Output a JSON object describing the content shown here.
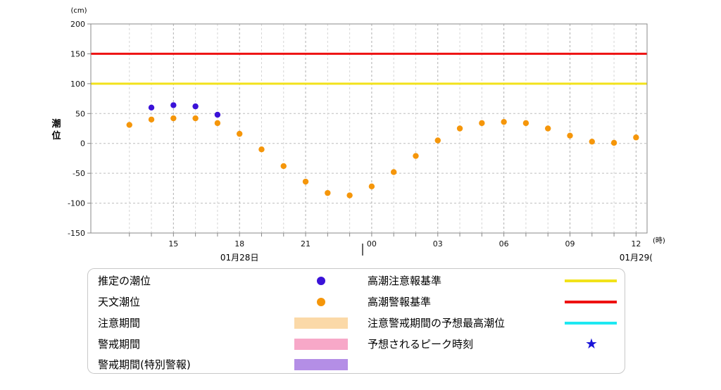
{
  "chart_data": {
    "type": "scatter",
    "ylabel": "潮位",
    "y_unit": "(cm)",
    "x_unit": "(時)",
    "ylim": [
      -150,
      200
    ],
    "yticks": [
      200,
      150,
      100,
      50,
      0,
      -50,
      -100,
      -150
    ],
    "x_range_hours": [
      11.25,
      36.5
    ],
    "xticks": [
      {
        "hour": 15,
        "label": "15"
      },
      {
        "hour": 18,
        "label": "18"
      },
      {
        "hour": 21,
        "label": "21"
      },
      {
        "hour": 24,
        "label": "00"
      },
      {
        "hour": 27,
        "label": "03"
      },
      {
        "hour": 30,
        "label": "06"
      },
      {
        "hour": 33,
        "label": "09"
      },
      {
        "hour": 36,
        "label": "12"
      }
    ],
    "date_labels": [
      {
        "hour": 18,
        "label": "01月28日"
      },
      {
        "hour": 36,
        "label": "01月29("
      }
    ],
    "reference_lines": [
      {
        "name": "高潮警報基準",
        "value": 150,
        "color": "#ee1111"
      },
      {
        "name": "高潮注意報基準",
        "value": 100,
        "color": "#f2e21a"
      }
    ],
    "series": [
      {
        "name": "推定の潮位",
        "color": "#3a12d8",
        "points": [
          [
            14,
            60
          ],
          [
            15,
            64
          ],
          [
            16,
            62
          ],
          [
            17,
            48
          ]
        ]
      },
      {
        "name": "天文潮位",
        "color": "#f5960a",
        "points": [
          [
            13,
            31
          ],
          [
            14,
            40
          ],
          [
            15,
            42
          ],
          [
            16,
            42
          ],
          [
            17,
            34
          ],
          [
            18,
            16
          ],
          [
            19,
            -10
          ],
          [
            20,
            -38
          ],
          [
            21,
            -64
          ],
          [
            22,
            -83
          ],
          [
            23,
            -87
          ],
          [
            24,
            -72
          ],
          [
            25,
            -48
          ],
          [
            26,
            -21
          ],
          [
            27,
            5
          ],
          [
            28,
            25
          ],
          [
            29,
            34
          ],
          [
            30,
            36
          ],
          [
            31,
            34
          ],
          [
            32,
            25
          ],
          [
            33,
            13
          ],
          [
            34,
            3
          ],
          [
            35,
            1
          ],
          [
            36,
            10
          ]
        ]
      }
    ]
  },
  "legend": {
    "items": [
      {
        "label": "推定の潮位",
        "symbol": "dot",
        "color": "#3a12d8"
      },
      {
        "label": "天文潮位",
        "symbol": "dot",
        "color": "#f5960a"
      },
      {
        "label": "注意期間",
        "symbol": "rect",
        "color": "#fbd9a8"
      },
      {
        "label": "警戒期間",
        "symbol": "rect",
        "color": "#f7a8c8"
      },
      {
        "label": "警戒期間(特別警報)",
        "symbol": "rect",
        "color": "#b48ee6"
      },
      {
        "label": "高潮注意報基準",
        "symbol": "line",
        "color": "#f2e21a"
      },
      {
        "label": "高潮警報基準",
        "symbol": "line",
        "color": "#ee1111"
      },
      {
        "label": "注意警戒期間の予想最高潮位",
        "symbol": "line",
        "color": "#1ee8f2"
      },
      {
        "label": "予想されるピーク時刻",
        "symbol": "star",
        "color": "#1a14d8"
      }
    ]
  }
}
